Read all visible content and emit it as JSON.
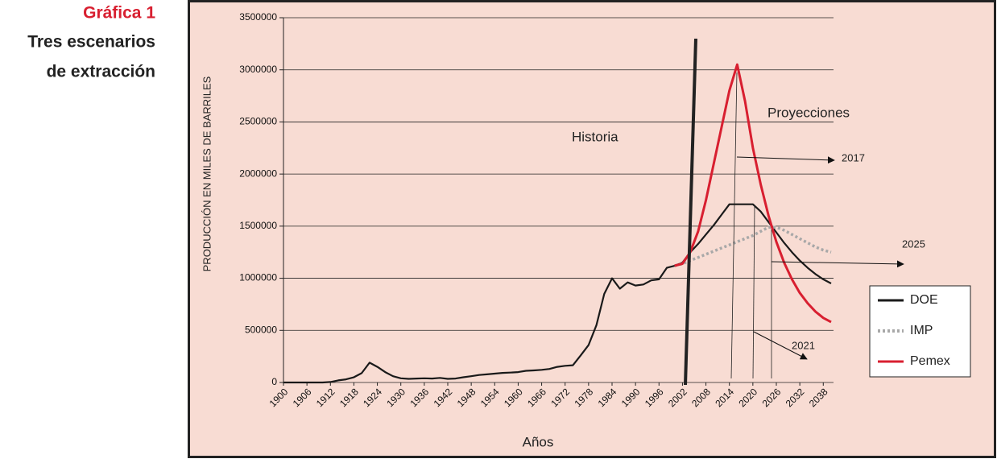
{
  "chart_data": {
    "type": "line",
    "side_title": "Gráfica 1",
    "title": [
      "Tres escenarios",
      "de extracción"
    ],
    "xlabel": "Años",
    "ylabel": "PRODUCCIÓN EN MILES DE BARRILES",
    "annotations": [
      "Historia",
      "Proyecciones",
      "2017",
      "2025",
      "2021"
    ],
    "x": [
      1900,
      1902,
      1904,
      1906,
      1908,
      1910,
      1912,
      1914,
      1916,
      1918,
      1920,
      1922,
      1924,
      1926,
      1928,
      1930,
      1932,
      1934,
      1936,
      1938,
      1940,
      1942,
      1944,
      1946,
      1948,
      1950,
      1952,
      1954,
      1956,
      1958,
      1960,
      1962,
      1964,
      1966,
      1968,
      1970,
      1972,
      1974,
      1976,
      1978,
      1980,
      1982,
      1984,
      1986,
      1988,
      1990,
      1992,
      1994,
      1996,
      1998,
      2000,
      2002,
      2004,
      2006,
      2008,
      2010,
      2012,
      2014,
      2016,
      2018,
      2020,
      2022,
      2024,
      2026,
      2028,
      2030,
      2032,
      2034,
      2036,
      2038,
      2040
    ],
    "xlim": [
      1900,
      2040
    ],
    "xticks": [
      1900,
      1906,
      1912,
      1918,
      1924,
      1930,
      1936,
      1942,
      1948,
      1954,
      1960,
      1966,
      1972,
      1978,
      1984,
      1990,
      1996,
      2002,
      2008,
      2014,
      2020,
      2026,
      2032,
      2038
    ],
    "ylim": [
      0,
      3500000
    ],
    "yticks": [
      0,
      500000,
      1000000,
      1500000,
      2000000,
      2500000,
      3000000,
      3500000
    ],
    "grid": true,
    "legend": "right",
    "series": [
      {
        "name": "DOE",
        "color": "#1a1a1a",
        "style": "solid",
        "values": [
          0,
          0,
          0,
          0,
          0,
          0,
          5000,
          20000,
          30000,
          50000,
          90000,
          190000,
          150000,
          100000,
          60000,
          40000,
          35000,
          38000,
          40000,
          38000,
          44000,
          35000,
          38000,
          50000,
          60000,
          72000,
          78000,
          85000,
          92000,
          95000,
          100000,
          112000,
          116000,
          121000,
          130000,
          150000,
          160000,
          165000,
          260000,
          360000,
          550000,
          850000,
          1000000,
          900000,
          960000,
          930000,
          940000,
          980000,
          990000,
          1100000,
          1120000,
          1150000,
          1250000,
          1330000,
          1420000,
          1510000,
          1610000,
          1710000,
          1710000,
          1710000,
          1710000,
          1640000,
          1540000,
          1440000,
          1340000,
          1250000,
          1170000,
          1100000,
          1040000,
          990000,
          950000
        ]
      },
      {
        "name": "IMP",
        "color": "#a8a8a8",
        "style": "dotted",
        "values": [
          null,
          null,
          null,
          null,
          null,
          null,
          null,
          null,
          null,
          null,
          null,
          null,
          null,
          null,
          null,
          null,
          null,
          null,
          null,
          null,
          null,
          null,
          null,
          null,
          null,
          null,
          null,
          null,
          null,
          null,
          null,
          null,
          null,
          null,
          null,
          null,
          null,
          null,
          null,
          null,
          null,
          null,
          null,
          null,
          null,
          null,
          null,
          null,
          null,
          null,
          1120000,
          1140000,
          1170000,
          1200000,
          1230000,
          1260000,
          1290000,
          1320000,
          1350000,
          1380000,
          1410000,
          1450000,
          1490000,
          1490000,
          1460000,
          1420000,
          1380000,
          1340000,
          1300000,
          1270000,
          1250000
        ]
      },
      {
        "name": "Pemex",
        "color": "#d81f30",
        "style": "solid",
        "values": [
          null,
          null,
          null,
          null,
          null,
          null,
          null,
          null,
          null,
          null,
          null,
          null,
          null,
          null,
          null,
          null,
          null,
          null,
          null,
          null,
          null,
          null,
          null,
          null,
          null,
          null,
          null,
          null,
          null,
          null,
          null,
          null,
          null,
          null,
          null,
          null,
          null,
          null,
          null,
          null,
          null,
          null,
          null,
          null,
          null,
          null,
          null,
          null,
          null,
          null,
          1120000,
          1140000,
          1250000,
          1450000,
          1750000,
          2100000,
          2450000,
          2800000,
          3050000,
          2700000,
          2250000,
          1900000,
          1600000,
          1350000,
          1150000,
          990000,
          860000,
          760000,
          680000,
          620000,
          580000
        ]
      }
    ]
  }
}
